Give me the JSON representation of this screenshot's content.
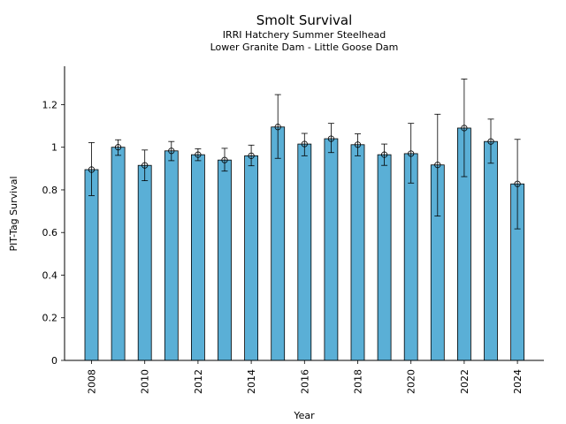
{
  "chart_data": {
    "type": "bar",
    "title": "Smolt Survival",
    "subtitle_line1": "IRRI Hatchery Summer Steelhead",
    "subtitle_line2": "Lower Granite Dam - Little Goose Dam",
    "xlabel": "Year",
    "ylabel": "PIT-Tag Survival",
    "ylim": [
      0,
      1.38
    ],
    "yticks": [
      0,
      0.2,
      0.4,
      0.6,
      0.8,
      1,
      1.2
    ],
    "ytick_labels": [
      "0",
      "0.2",
      "0.4",
      "0.6",
      "0.8",
      "1",
      "1.2"
    ],
    "xtick_labels": [
      "2008",
      "2010",
      "2012",
      "2014",
      "2016",
      "2018",
      "2020",
      "2022",
      "2024"
    ],
    "grid": false,
    "legend": "none",
    "bar_color": "#5aafd6",
    "edge_color": "#000000",
    "categories": [
      2008,
      2009,
      2010,
      2011,
      2012,
      2013,
      2014,
      2015,
      2016,
      2017,
      2018,
      2019,
      2020,
      2021,
      2022,
      2023,
      2024
    ],
    "values": [
      0.895,
      1.0,
      0.915,
      0.983,
      0.965,
      0.94,
      0.96,
      1.095,
      1.015,
      1.04,
      1.012,
      0.965,
      0.97,
      0.917,
      1.09,
      1.027,
      0.828
    ],
    "error_low": [
      0.773,
      0.962,
      0.843,
      0.937,
      0.937,
      0.888,
      0.913,
      0.948,
      0.96,
      0.975,
      0.96,
      0.915,
      0.832,
      0.677,
      0.862,
      0.925,
      0.617
    ],
    "error_high": [
      1.022,
      1.035,
      0.987,
      1.027,
      0.993,
      0.995,
      1.01,
      1.247,
      1.065,
      1.112,
      1.063,
      1.015,
      1.112,
      1.155,
      1.32,
      1.132,
      1.037
    ]
  }
}
